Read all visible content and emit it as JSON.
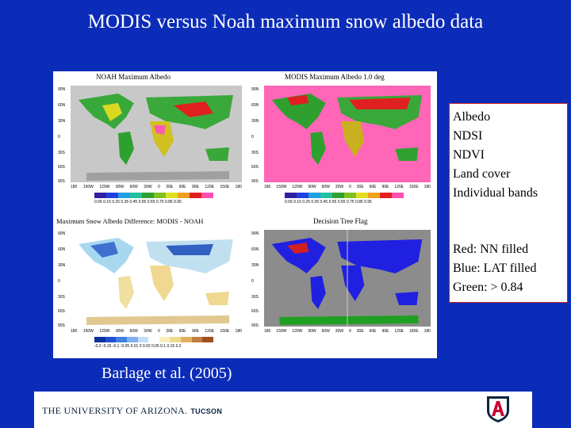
{
  "slide": {
    "title": "MODIS versus Noah maximum snow albedo data",
    "citation": "Barlage et al. (2005)"
  },
  "figure": {
    "panels": [
      {
        "title": "NOAH Maximum Albedo",
        "lat_labels": [
          "90N",
          "60N",
          "30N",
          "0",
          "30S",
          "60S",
          "90S"
        ],
        "lon_labels": [
          "180",
          "150W",
          "120W",
          "90W",
          "60W",
          "30W",
          "0",
          "30E",
          "60E",
          "90E",
          "120E",
          "150E",
          "180"
        ],
        "colorbar_labels": "0.05 0.15 0.25 0.35 0.45 0.55 0.65 0.75 0.85 0.95"
      },
      {
        "title": "MODIS Maximum Albedo 1.0 deg",
        "lat_labels": [
          "90N",
          "60N",
          "30N",
          "0",
          "30S",
          "60S",
          "90S"
        ],
        "lon_labels": [
          "180",
          "150W",
          "120W",
          "90W",
          "60W",
          "30W",
          "0",
          "30E",
          "60E",
          "90E",
          "120E",
          "150E",
          "180"
        ],
        "colorbar_labels": "0.05 0.15 0.25 0.35 0.45 0.55 0.65 0.75 0.85 0.95"
      },
      {
        "title": "Maximum Snow Albedo Difference: MODIS - NOAH",
        "lat_labels": [
          "90N",
          "60N",
          "30N",
          "0",
          "30S",
          "60S",
          "90S"
        ],
        "lon_labels": [
          "180",
          "150W",
          "120W",
          "90W",
          "60W",
          "30W",
          "0",
          "30E",
          "60E",
          "90E",
          "120E",
          "150E",
          "180"
        ],
        "colorbar_labels": "-0.2 -0.15 -0.1 -0.05 0.01 0 0.02 0.05 0.1 0.15 0.2"
      },
      {
        "title": "Decision Tree Flag",
        "lat_labels": [
          "90N",
          "60N",
          "30N",
          "0",
          "30S",
          "60S",
          "90S"
        ],
        "lon_labels": [
          "180",
          "150W",
          "120W",
          "90W",
          "60W",
          "30W",
          "0",
          "30E",
          "60E",
          "90E",
          "120E",
          "150E",
          "180"
        ],
        "colorbar_labels": ""
      }
    ]
  },
  "notes": {
    "inputs": [
      "Albedo",
      "NDSI",
      "NDVI",
      "Land cover",
      "Individual bands"
    ],
    "legend": [
      "Red: NN filled",
      "Blue: LAT filled",
      "Green: > 0.84"
    ]
  },
  "footer": {
    "university": "THE UNIVERSITY OF ARIZONA.",
    "campus": "TUCSON"
  },
  "colors": {
    "background": "#0b2cb8",
    "notes_border": "#cc2020",
    "footer_text": "#0c2340",
    "logo_red": "#cc0033",
    "logo_blue": "#0c2340"
  }
}
